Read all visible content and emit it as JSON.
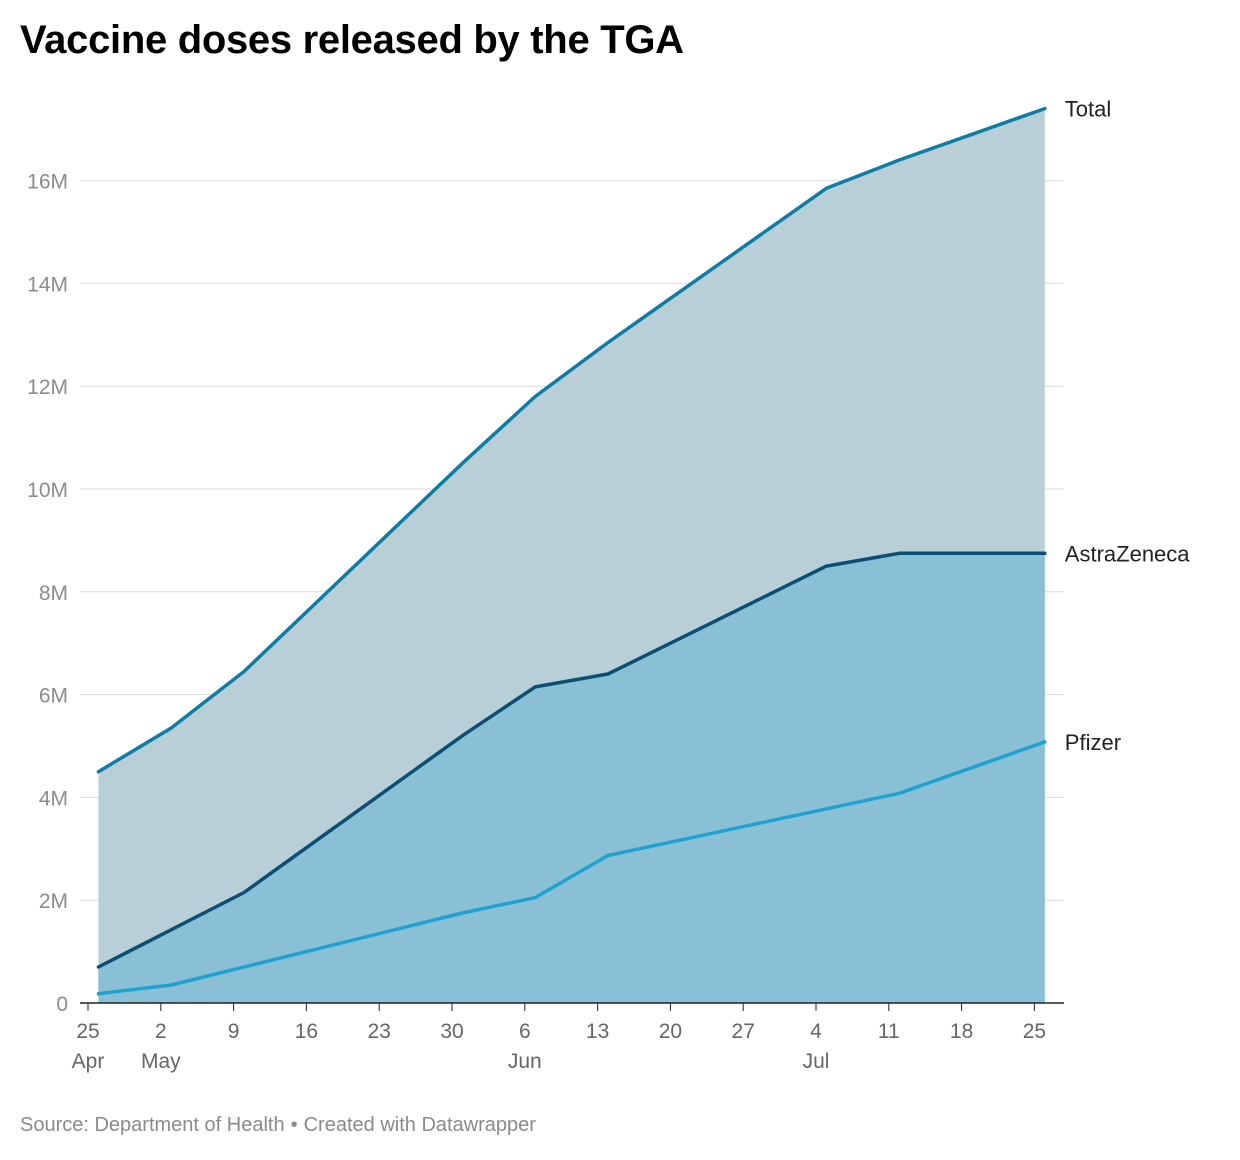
{
  "title": "Vaccine doses released by the TGA",
  "footer": {
    "source": "Source: Department of Health",
    "separator": "•",
    "credit": "Created with Datawrapper"
  },
  "chart_data": {
    "type": "area",
    "x": [
      "2021-04-25",
      "2021-05-02",
      "2021-05-09",
      "2021-05-16",
      "2021-05-23",
      "2021-05-30",
      "2021-06-06",
      "2021-06-13",
      "2021-06-20",
      "2021-06-27",
      "2021-07-04",
      "2021-07-11",
      "2021-07-18",
      "2021-07-25"
    ],
    "x_tick_labels": [
      {
        "day": "25",
        "month": "Apr"
      },
      {
        "day": "2",
        "month": "May"
      },
      {
        "day": "9",
        "month": ""
      },
      {
        "day": "16",
        "month": ""
      },
      {
        "day": "23",
        "month": ""
      },
      {
        "day": "30",
        "month": ""
      },
      {
        "day": "6",
        "month": "Jun"
      },
      {
        "day": "13",
        "month": ""
      },
      {
        "day": "20",
        "month": ""
      },
      {
        "day": "27",
        "month": ""
      },
      {
        "day": "4",
        "month": "Jul"
      },
      {
        "day": "11",
        "month": ""
      },
      {
        "day": "18",
        "month": ""
      },
      {
        "day": "25",
        "month": ""
      }
    ],
    "y_ticks": [
      {
        "value": 0,
        "label": "0"
      },
      {
        "value": 2000000,
        "label": "2M"
      },
      {
        "value": 4000000,
        "label": "4M"
      },
      {
        "value": 6000000,
        "label": "6M"
      },
      {
        "value": 8000000,
        "label": "8M"
      },
      {
        "value": 10000000,
        "label": "10M"
      },
      {
        "value": 12000000,
        "label": "12M"
      },
      {
        "value": 14000000,
        "label": "14M"
      },
      {
        "value": 16000000,
        "label": "16M"
      }
    ],
    "ylim": [
      0,
      17500000
    ],
    "grid": true,
    "series": [
      {
        "name": "Total",
        "x": [
          "2021-04-26",
          "2021-05-03",
          "2021-05-10",
          "2021-05-17",
          "2021-05-24",
          "2021-05-31",
          "2021-06-07",
          "2021-06-14",
          "2021-06-21",
          "2021-06-28",
          "2021-07-05",
          "2021-07-12",
          "2021-07-19",
          "2021-07-26"
        ],
        "values": [
          4500000,
          5350000,
          6450000,
          7800000,
          9150000,
          10500000,
          11800000,
          12850000,
          13850000,
          14850000,
          15850000,
          16400000,
          16900000,
          17400000
        ],
        "color": "#0f7ca3",
        "fill": "#b9cfd7"
      },
      {
        "name": "AstraZeneca",
        "x": [
          "2021-04-26",
          "2021-05-10",
          "2021-05-31",
          "2021-06-07",
          "2021-06-14",
          "2021-06-21",
          "2021-07-05",
          "2021-07-12",
          "2021-07-26"
        ],
        "values": [
          700000,
          2150000,
          5200000,
          6150000,
          6400000,
          7100000,
          8500000,
          8750000,
          8750000
        ],
        "color": "#0b4f75",
        "fill": "#89c0d5"
      },
      {
        "name": "Pfizer",
        "x": [
          "2021-04-26",
          "2021-05-03",
          "2021-05-31",
          "2021-06-07",
          "2021-06-14",
          "2021-07-12",
          "2021-07-26"
        ],
        "values": [
          180000,
          350000,
          1750000,
          2050000,
          2870000,
          4080000,
          5080000
        ],
        "color": "#1fa2cf"
      }
    ]
  }
}
